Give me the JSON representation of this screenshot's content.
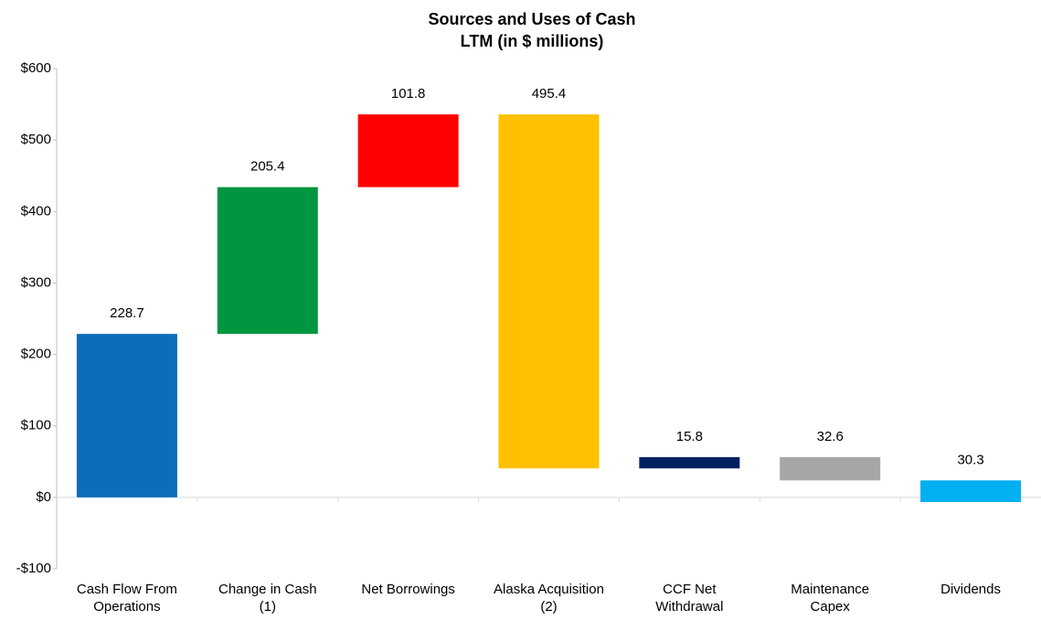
{
  "chart_data": {
    "type": "waterfall",
    "title": "Sources and Uses of Cash",
    "subtitle": "LTM (in $ millions)",
    "categories": [
      "Cash Flow From\nOperations",
      "Change in Cash\n(1)",
      "Net Borrowings",
      "Alaska Acquisition\n(2)",
      "CCF Net\nWithdrawal",
      "Maintenance\nCapex",
      "Dividends"
    ],
    "values": [
      228.7,
      205.4,
      101.8,
      -495.4,
      15.8,
      -32.6,
      -30.3
    ],
    "value_labels": [
      "228.7",
      "205.4",
      "101.8",
      "495.4",
      "15.8",
      "32.6",
      "30.3"
    ],
    "colors": [
      "#0a6ebd",
      "#00963f",
      "#ff0000",
      "#ffc000",
      "#002060",
      "#a6a6a6",
      "#00b0f0"
    ],
    "ylim": [
      -100,
      600
    ],
    "yticks": [
      {
        "value": -100,
        "label": "-$100"
      },
      {
        "value": 0,
        "label": "$0"
      },
      {
        "value": 100,
        "label": "$100"
      },
      {
        "value": 200,
        "label": "$200"
      },
      {
        "value": 300,
        "label": "$300"
      },
      {
        "value": 400,
        "label": "$400"
      },
      {
        "value": 500,
        "label": "$500"
      },
      {
        "value": 600,
        "label": "$600"
      }
    ],
    "grid": false
  }
}
